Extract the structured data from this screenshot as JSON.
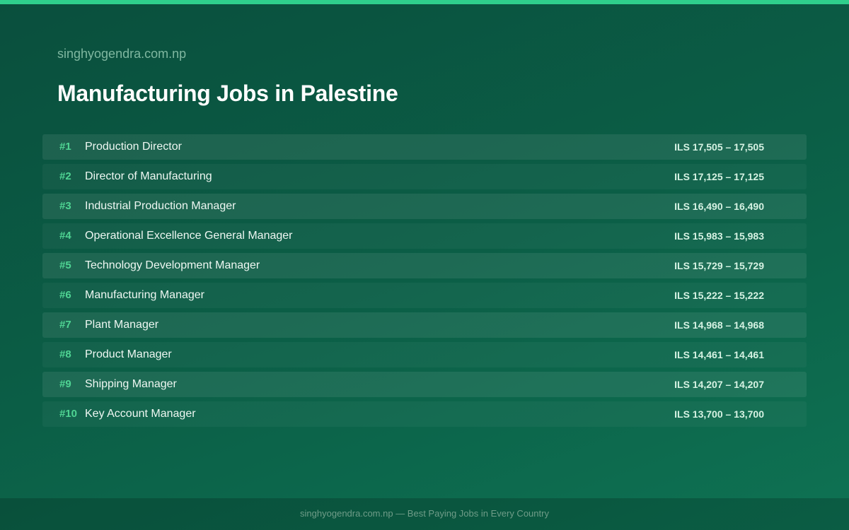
{
  "site": "singhyogendra.com.np",
  "title": "Manufacturing Jobs in Palestine",
  "rows": [
    {
      "rank": "#1",
      "job": "Production Director",
      "salary": "ILS 17,505 – 17,505"
    },
    {
      "rank": "#2",
      "job": "Director of Manufacturing",
      "salary": "ILS 17,125 – 17,125"
    },
    {
      "rank": "#3",
      "job": "Industrial Production Manager",
      "salary": "ILS 16,490 – 16,490"
    },
    {
      "rank": "#4",
      "job": "Operational Excellence General Manager",
      "salary": "ILS 15,983 – 15,983"
    },
    {
      "rank": "#5",
      "job": "Technology Development Manager",
      "salary": "ILS 15,729 – 15,729"
    },
    {
      "rank": "#6",
      "job": "Manufacturing Manager",
      "salary": "ILS 15,222 – 15,222"
    },
    {
      "rank": "#7",
      "job": "Plant Manager",
      "salary": "ILS 14,968 – 14,968"
    },
    {
      "rank": "#8",
      "job": "Product Manager",
      "salary": "ILS 14,461 – 14,461"
    },
    {
      "rank": "#9",
      "job": "Shipping Manager",
      "salary": "ILS 14,207 – 14,207"
    },
    {
      "rank": "#10",
      "job": "Key Account Manager",
      "salary": "ILS 13,700 – 13,700"
    }
  ],
  "footer": "singhyogendra.com.np — Best Paying Jobs in Every Country"
}
